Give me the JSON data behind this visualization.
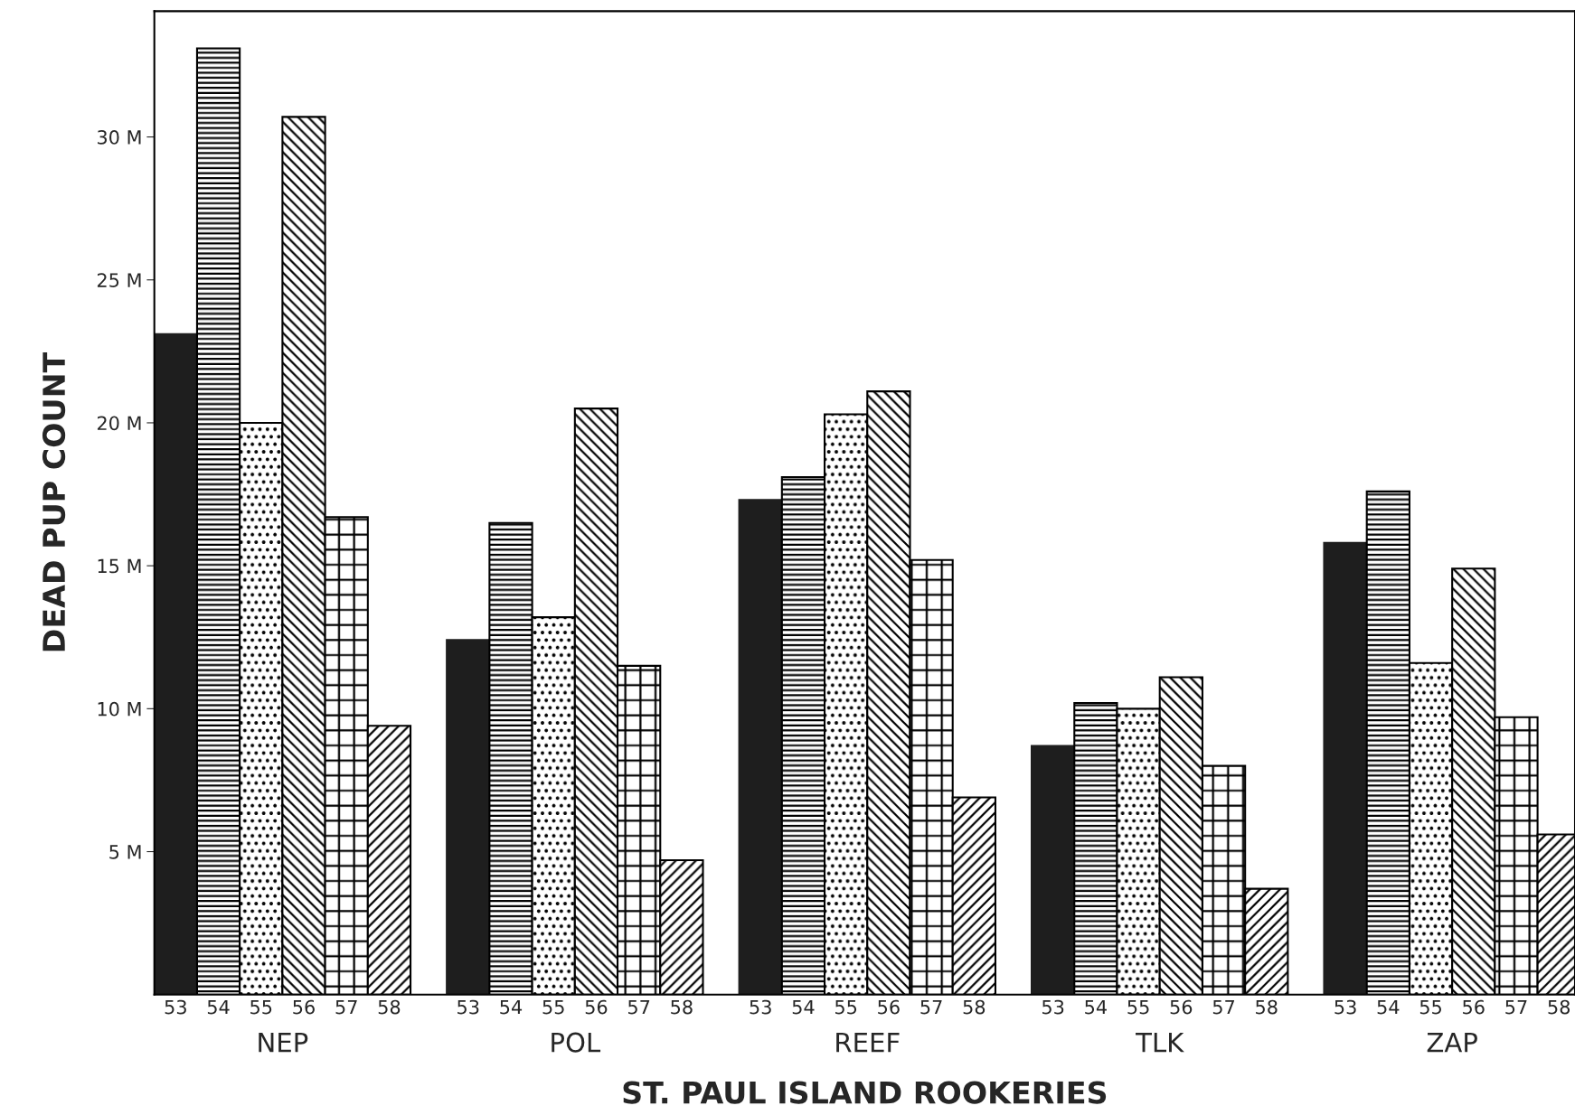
{
  "chart_data": {
    "type": "bar",
    "xlabel": "ST. PAUL ISLAND ROOKERIES",
    "ylabel": "DEAD PUP COUNT",
    "categories": [
      "NEP",
      "POL",
      "REEF",
      "TLK",
      "ZAP"
    ],
    "series": [
      {
        "name": "53",
        "color": "#1e1e1e",
        "values": [
          23.1,
          12.4,
          17.3,
          8.7,
          15.8
        ]
      },
      {
        "name": "54",
        "color": "#000000",
        "values": [
          33.1,
          16.5,
          18.1,
          10.2,
          17.6
        ]
      },
      {
        "name": "55",
        "color": "#000000",
        "values": [
          20.0,
          13.2,
          20.3,
          10.0,
          11.6
        ]
      },
      {
        "name": "56",
        "color": "#000000",
        "values": [
          30.7,
          20.5,
          21.1,
          11.1,
          14.9
        ]
      },
      {
        "name": "57",
        "color": "#000000",
        "values": [
          16.7,
          11.5,
          15.2,
          8.0,
          9.7
        ]
      },
      {
        "name": "58",
        "color": "#000000",
        "values": [
          9.4,
          4.7,
          6.9,
          3.7,
          5.6
        ]
      }
    ],
    "ylim": [
      0,
      34.4
    ],
    "yticks": [
      {
        "value": 5,
        "label": "5 M"
      },
      {
        "value": 10,
        "label": "10 M"
      },
      {
        "value": 15,
        "label": "15 M"
      },
      {
        "value": 20,
        "label": "20 M"
      },
      {
        "value": 25,
        "label": "25 M"
      },
      {
        "value": 30,
        "label": "30 M"
      }
    ],
    "grid": false,
    "legend": false
  }
}
